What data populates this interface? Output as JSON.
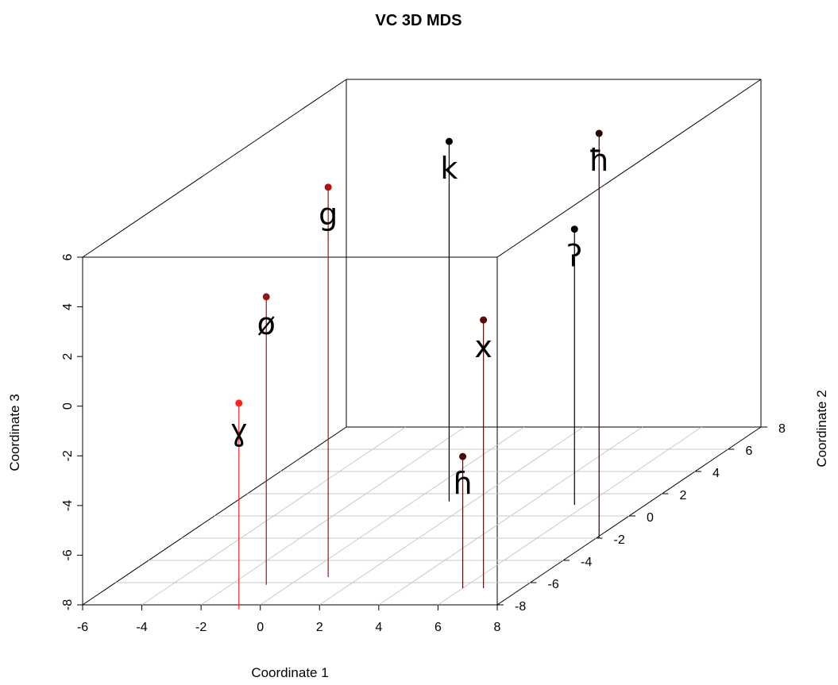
{
  "chart_data": {
    "type": "scatter3d",
    "title": "VC 3D MDS",
    "xlabel": "Coordinate 1",
    "ylabel": "Coordinate 2",
    "zlabel": "Coordinate 3",
    "xlim": [
      -6,
      8
    ],
    "ylim": [
      -8,
      8
    ],
    "zlim": [
      -8,
      6
    ],
    "xticks": [
      -6,
      -4,
      -2,
      0,
      2,
      4,
      6,
      8
    ],
    "yticks": [
      -8,
      -6,
      -4,
      -2,
      0,
      2,
      4,
      6,
      8
    ],
    "zticks": [
      -8,
      -6,
      -4,
      -2,
      0,
      2,
      4,
      6
    ],
    "grid": "floor",
    "points": [
      {
        "label": "ø",
        "x": -0.8,
        "y": -6.2,
        "z": 3.6,
        "color": "#8b1a1a"
      },
      {
        "label": "ɣ",
        "x": -0.5,
        "y": -8.4,
        "z": 0.3,
        "color": "#ff2020"
      },
      {
        "label": "g",
        "x": 0.9,
        "y": -5.5,
        "z": 7.7,
        "color": "#b01010"
      },
      {
        "label": "k",
        "x": 1.2,
        "y": 1.3,
        "z": 6.5,
        "color": "#000000"
      },
      {
        "label": "x",
        "x": 6.7,
        "y": -6.5,
        "z": 2.8,
        "color": "#5a0a0a"
      },
      {
        "label": "ɦ",
        "x": 6.0,
        "y": -6.5,
        "z": -2.7,
        "color": "#4a0a0a"
      },
      {
        "label": "ʔ",
        "x": 5.6,
        "y": 1.0,
        "z": 3.1,
        "color": "#000000"
      },
      {
        "label": "ħ",
        "x": 8.1,
        "y": -2.0,
        "z": 8.3,
        "color": "#2a0505"
      }
    ]
  }
}
